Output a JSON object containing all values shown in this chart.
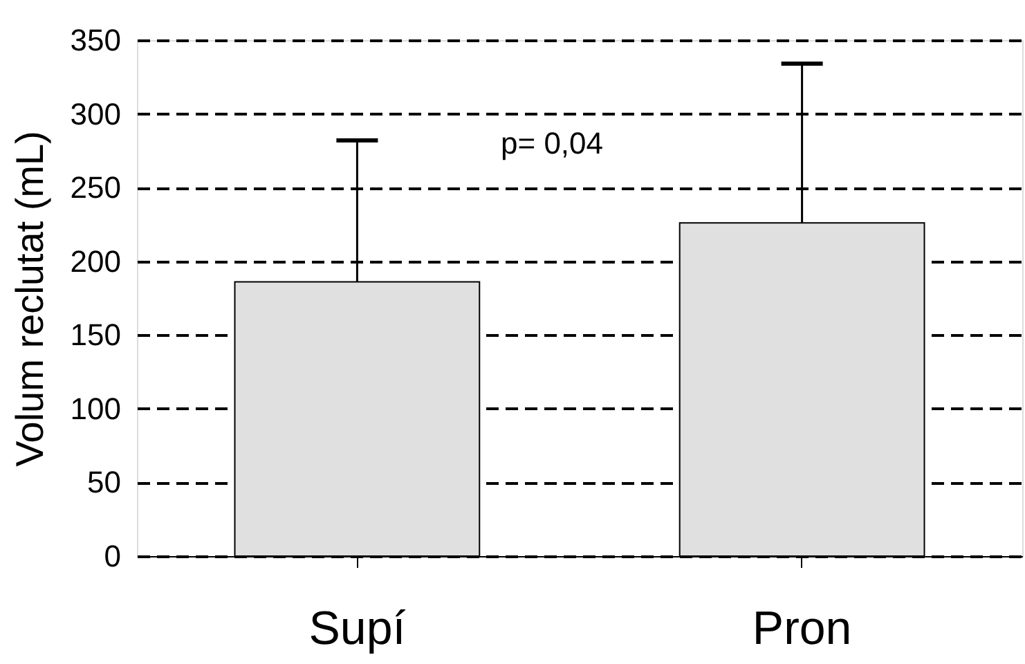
{
  "chart_data": {
    "type": "bar",
    "ylabel": "Volum reclutat (mL)",
    "categories": [
      "Supí",
      "Pron"
    ],
    "values": [
      186,
      226
    ],
    "color": "#e0e0e0",
    "errors": [
      [
        186,
        282
      ],
      [
        226,
        334
      ]
    ],
    "ylim": [
      0,
      350
    ],
    "yticks": [
      0,
      50,
      100,
      150,
      200,
      250,
      300,
      350
    ],
    "grid": "y",
    "annotations": [
      "p= 0,04"
    ]
  }
}
